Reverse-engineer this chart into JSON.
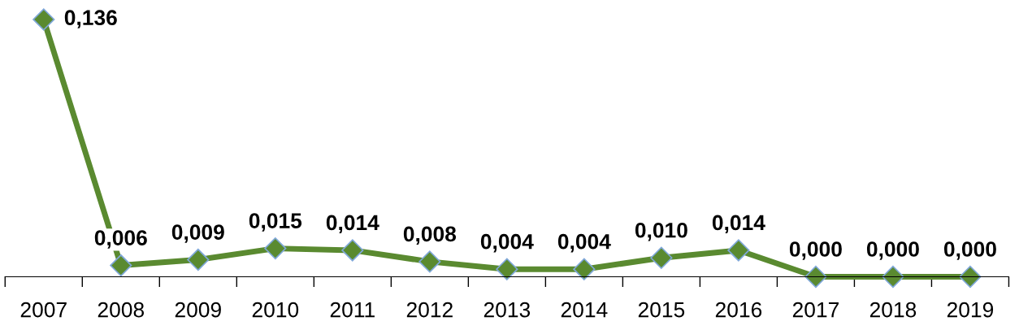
{
  "chart_data": {
    "type": "line",
    "categories": [
      "2007",
      "2008",
      "2009",
      "2010",
      "2011",
      "2012",
      "2013",
      "2014",
      "2015",
      "2016",
      "2017",
      "2018",
      "2019"
    ],
    "series": [
      {
        "color": "#5a8a30",
        "values": [
          0.136,
          0.006,
          0.009,
          0.015,
          0.014,
          0.008,
          0.004,
          0.004,
          0.01,
          0.014,
          0.0,
          0.0,
          0.0
        ],
        "value_labels": [
          "0,136",
          "0,006",
          "0,009",
          "0,015",
          "0,014",
          "0,008",
          "0,004",
          "0,004",
          "0,010",
          "0,014",
          "0,000",
          "0,000",
          "0,000"
        ]
      }
    ],
    "marker": "diamond",
    "line_style": "solid",
    "grid": false,
    "legend": false
  }
}
